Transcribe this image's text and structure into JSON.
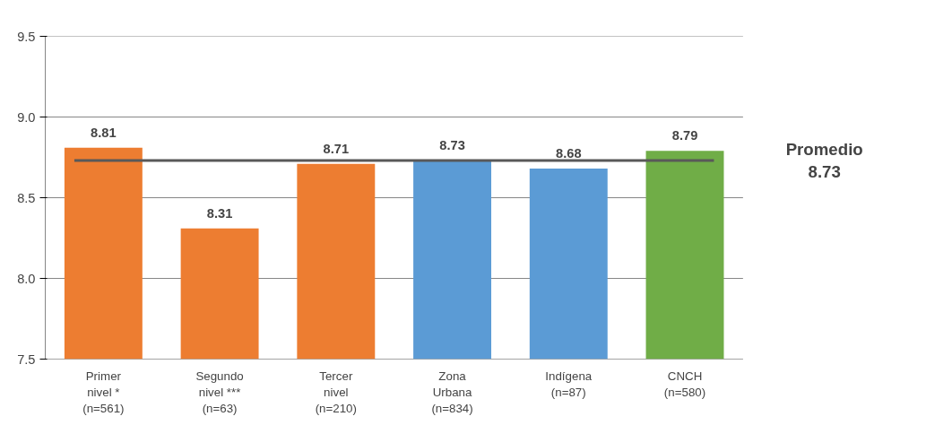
{
  "chart_data": {
    "type": "bar",
    "categories": [
      "Primer\nnivel *\n(n=561)",
      "Segundo\nnivel ***\n(n=63)",
      "Tercer\nnivel\n(n=210)",
      "Zona\nUrbana\n(n=834)",
      "Indígena\n(n=87)",
      "CNCH\n(n=580)"
    ],
    "values": [
      8.81,
      8.31,
      8.71,
      8.73,
      8.68,
      8.79
    ],
    "colors": [
      "#ed7d31",
      "#ed7d31",
      "#ed7d31",
      "#5b9bd5",
      "#5b9bd5",
      "#70ad47"
    ],
    "ylim": [
      7.5,
      9.5
    ],
    "yticks": [
      {
        "value": 7.5,
        "label": "7.5"
      },
      {
        "value": 8,
        "label": "8.0"
      },
      {
        "value": 8.5,
        "label": "8.5"
      },
      {
        "value": 9,
        "label": "9.0"
      },
      {
        "value": 9.5,
        "label": "9.5"
      }
    ],
    "grid": "y",
    "data_labels": true,
    "ref_lines": [
      {
        "axis": "y",
        "value": 8.73,
        "label": "Promedio\n8.73",
        "color": "#595959"
      }
    ]
  }
}
